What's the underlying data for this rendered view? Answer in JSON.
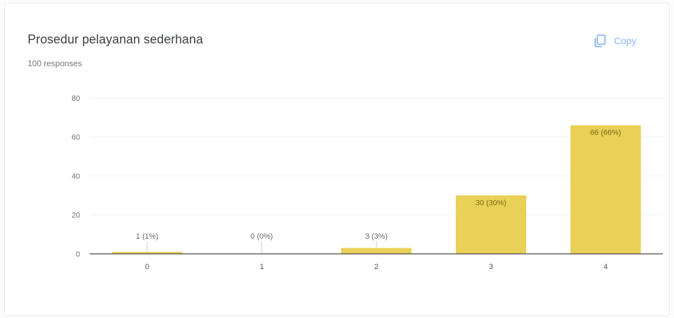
{
  "header": {
    "title": "Prosedur pelayanan sederhana",
    "responses": "100 responses",
    "copy_label": "Copy",
    "copy_icon": "copy-icon"
  },
  "colors": {
    "bar": "#e9d157",
    "axis": "#444444",
    "grid": "#f1f1f1",
    "accent": "#8ab4f8"
  },
  "chart_data": {
    "type": "bar",
    "title": "Prosedur pelayanan sederhana",
    "xlabel": "",
    "ylabel": "",
    "categories": [
      "0",
      "1",
      "2",
      "3",
      "4"
    ],
    "values": [
      1,
      0,
      3,
      30,
      66
    ],
    "data_labels": [
      "1 (1%)",
      "0 (0%)",
      "3 (3%)",
      "30 (30%)",
      "66 (66%)"
    ],
    "yticks": [
      0,
      20,
      40,
      60,
      80
    ],
    "ylim": [
      0,
      80
    ],
    "grid": false,
    "legend": "none"
  }
}
